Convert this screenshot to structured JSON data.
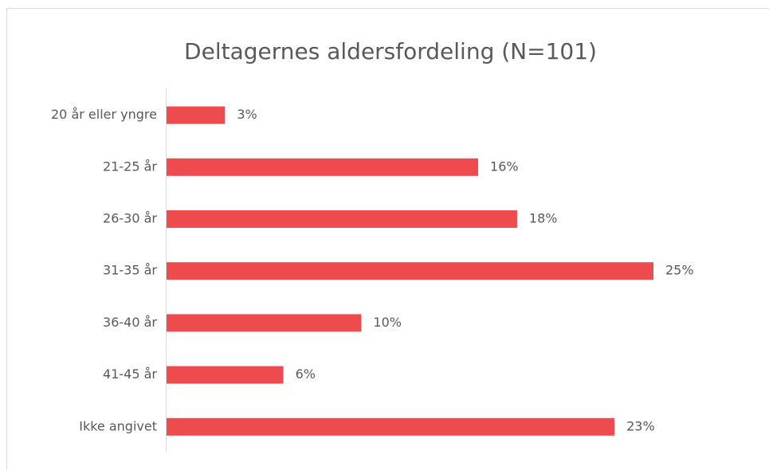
{
  "chart_data": {
    "type": "bar",
    "orientation": "horizontal",
    "title": "Deltagernes aldersfordeling (N=101)",
    "categories": [
      "20 år eller yngre",
      "21-25 år",
      "26-30 år",
      "31-35 år",
      "36-40 år",
      "41-45 år",
      "Ikke angivet"
    ],
    "values": [
      3,
      16,
      18,
      25,
      10,
      6,
      23
    ],
    "value_labels": [
      "3%",
      "16%",
      "18%",
      "25%",
      "10%",
      "6%",
      "23%"
    ],
    "color": "#ee4b4f"
  }
}
